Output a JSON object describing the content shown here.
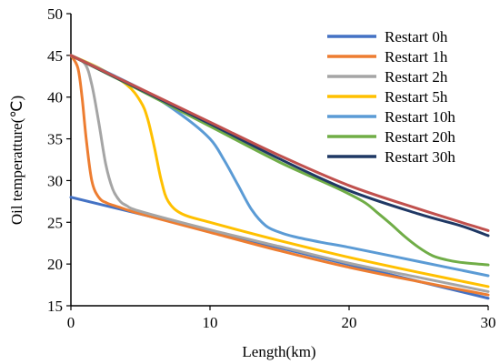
{
  "chart_data": {
    "type": "line",
    "title": "",
    "xlabel": "Length(km)",
    "ylabel": "Oil temperatture(℃)",
    "xlim": [
      0,
      30
    ],
    "ylim": [
      15,
      50
    ],
    "xticks": [
      "0",
      "10",
      "20",
      "30"
    ],
    "yticks": [
      "15",
      "20",
      "25",
      "30",
      "35",
      "40",
      "45",
      "50"
    ],
    "grid": false,
    "legend_position": "top-right",
    "series": [
      {
        "name": "Restart 0h",
        "color": "#4472C4",
        "x": [
          0,
          30
        ],
        "y": [
          28.0,
          15.9
        ]
      },
      {
        "name": "Restart 1h",
        "color": "#ED7D31",
        "x": [
          0,
          0.5,
          0.8,
          1.1,
          1.5,
          2.0,
          2.6,
          3.5,
          5,
          10,
          15,
          20,
          25,
          30
        ],
        "y": [
          45.0,
          43.5,
          40.0,
          35.0,
          30.0,
          28.0,
          27.3,
          26.8,
          26.0,
          23.8,
          21.6,
          19.6,
          17.9,
          16.3
        ]
      },
      {
        "name": "Restart 2h",
        "color": "#A5A5A5",
        "x": [
          0,
          1,
          1.5,
          2,
          2.5,
          3,
          3.5,
          4,
          5,
          10,
          15,
          20,
          25,
          30
        ],
        "y": [
          45.0,
          44.0,
          41.5,
          37.0,
          32.0,
          29.0,
          27.6,
          27.0,
          26.3,
          24.1,
          22.1,
          20.1,
          18.4,
          16.7
        ]
      },
      {
        "name": "Restart 5h",
        "color": "#FFC000",
        "x": [
          0,
          2,
          4,
          5,
          5.5,
          6,
          6.5,
          7,
          8,
          10,
          15,
          20,
          25,
          30
        ],
        "y": [
          45.0,
          43.5,
          41.5,
          39.5,
          37.5,
          34.0,
          30.0,
          27.5,
          26.0,
          25.0,
          22.8,
          20.8,
          19.0,
          17.3
        ]
      },
      {
        "name": "Restart 10h",
        "color": "#5B9BD5",
        "x": [
          0,
          5,
          8,
          10,
          11,
          12,
          13,
          14,
          15,
          16,
          18,
          20,
          25,
          30
        ],
        "y": [
          45.0,
          41.0,
          37.8,
          35.0,
          32.5,
          29.5,
          26.5,
          24.6,
          23.8,
          23.3,
          22.6,
          22.0,
          20.3,
          18.6
        ]
      },
      {
        "name": "Restart 20h",
        "color": "#70AD47",
        "x": [
          0,
          5,
          10,
          15,
          19,
          21,
          22,
          23,
          24,
          25,
          26,
          27,
          28,
          30
        ],
        "y": [
          45.0,
          40.8,
          36.5,
          32.2,
          29.2,
          27.5,
          26.2,
          24.8,
          23.3,
          22.0,
          21.0,
          20.5,
          20.2,
          19.9
        ]
      },
      {
        "name": "Restart 30h",
        "color": "#1F3864",
        "x": [
          0,
          5,
          10,
          15,
          20,
          25,
          28,
          30
        ],
        "y": [
          45.0,
          40.9,
          36.8,
          32.6,
          28.8,
          26.0,
          24.6,
          23.4
        ]
      },
      {
        "name": "",
        "color": "#C0504D",
        "x": [
          0,
          5,
          10,
          15,
          20,
          25,
          30
        ],
        "y": [
          45.0,
          41.0,
          37.0,
          33.0,
          29.4,
          26.6,
          24.0
        ]
      }
    ]
  }
}
